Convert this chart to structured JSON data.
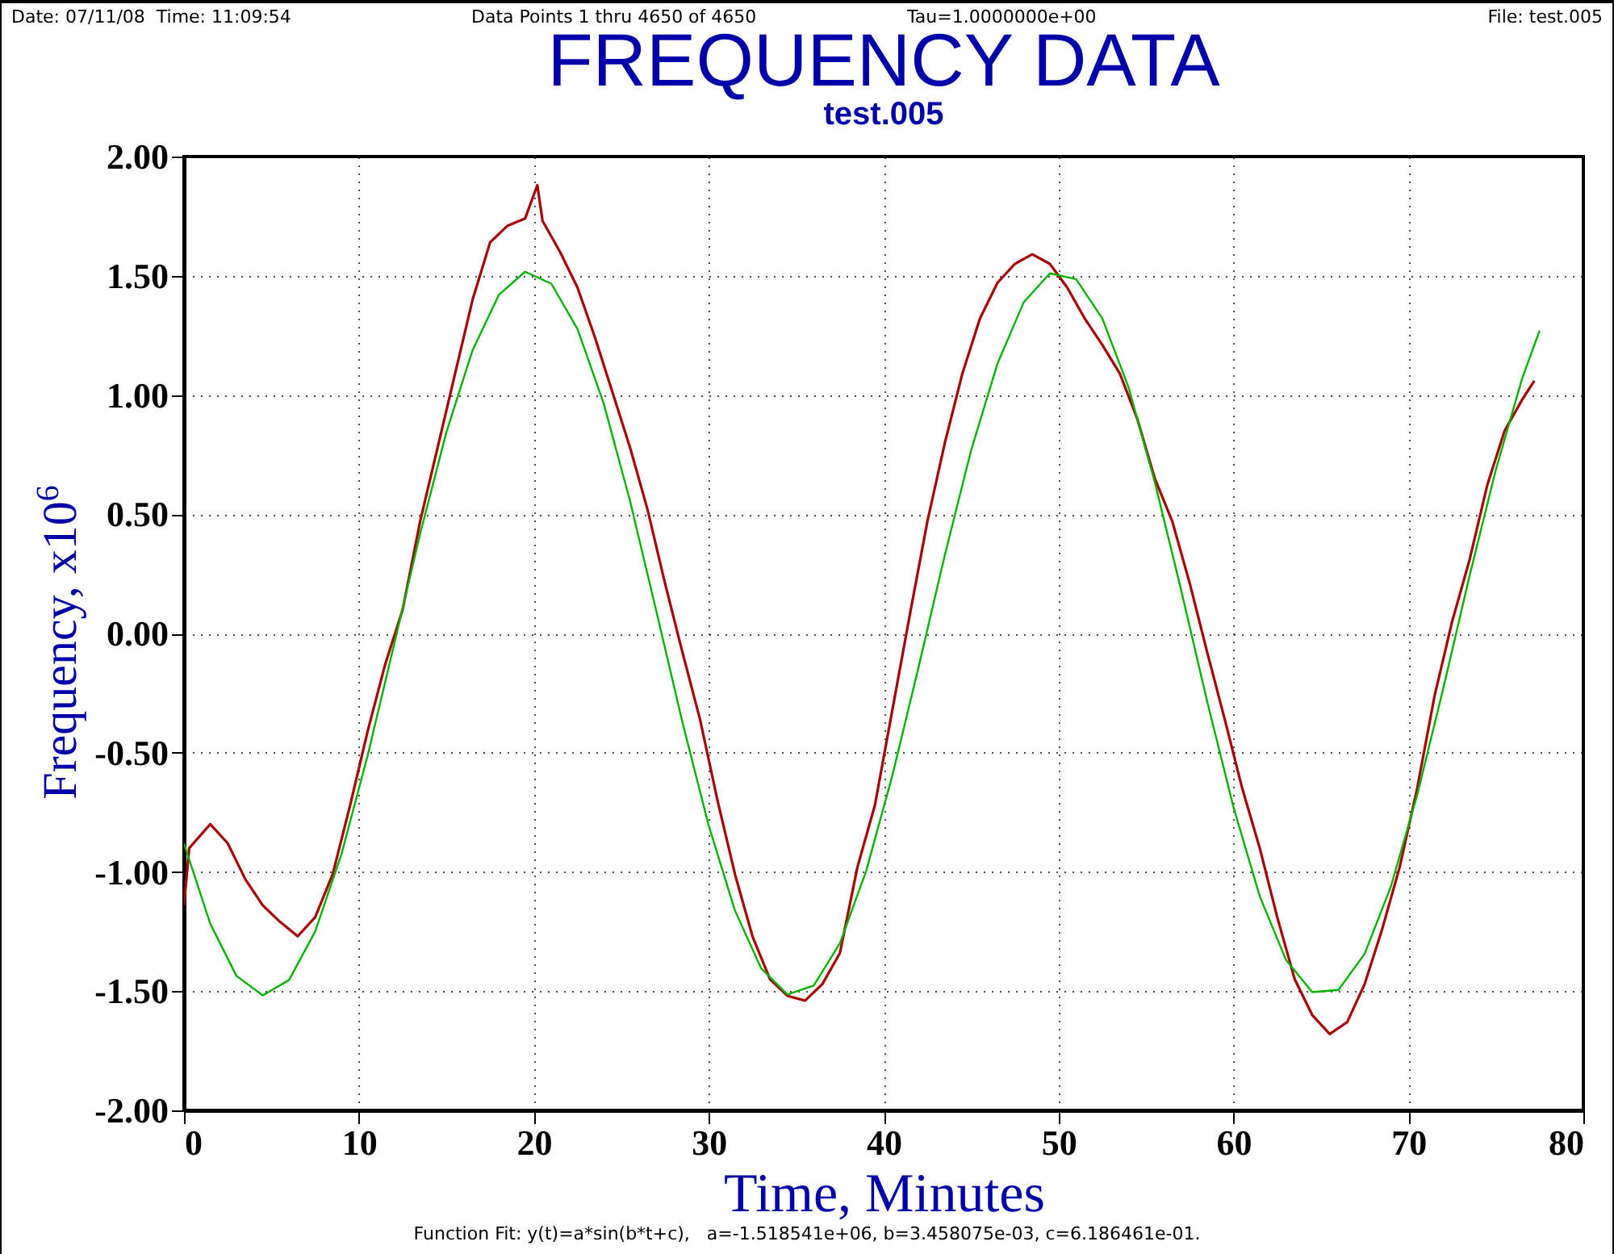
{
  "chart_data": {
    "type": "line",
    "title": "FREQUENCY DATA",
    "subtitle": "test.005",
    "xlabel": "Time, Minutes",
    "ylabel": "Frequency, x10$^{6}$",
    "annotations": [
      "Date: 07/11/08  Time: 11:09:54",
      "Data Points 1 thru 4650 of 4650",
      "Tau=1.0000000e+00",
      "File: test.005",
      "Function Fit: y(t)=a*sin(b*t+c),   a=-1.518541e+06, b=3.458075e-03, c=6.186461e-01."
    ],
    "xlim": [
      0,
      80
    ],
    "xticks": [
      0,
      10,
      20,
      30,
      40,
      50,
      60,
      70,
      80
    ],
    "ylim": [
      -2,
      2
    ],
    "yticks": [
      {
        "value": -2,
        "label": "-2.00"
      },
      {
        "value": -1.5,
        "label": "-1.50"
      },
      {
        "value": -1,
        "label": "-1.00"
      },
      {
        "value": -0.5,
        "label": "-0.50"
      },
      {
        "value": 0,
        "label": "0.00"
      },
      {
        "value": 0.5,
        "label": "0.50"
      },
      {
        "value": 1,
        "label": "1.00"
      },
      {
        "value": 1.5,
        "label": "1.50"
      },
      {
        "value": 2,
        "label": "2.00"
      }
    ],
    "grid": true,
    "marker": "none",
    "line_style": "solid",
    "series": [
      {
        "color": "#a80000",
        "x": [
          0,
          0.3,
          1.5,
          2.5,
          3.5,
          4.5,
          5.5,
          6.5,
          7.5,
          8.5,
          9.5,
          10.5,
          11.5,
          12.5,
          13.5,
          14.5,
          15.5,
          16.5,
          17.5,
          18.5,
          19.5,
          20.2,
          20.5,
          21.5,
          22.5,
          23.5,
          24.5,
          25.5,
          26.5,
          27.5,
          28.5,
          29.5,
          30.5,
          31.5,
          32.5,
          33.5,
          34.5,
          35.5,
          36.5,
          37.5,
          38.5,
          39.5,
          40,
          41.5,
          42.5,
          43.5,
          44.5,
          45.5,
          46.5,
          47.5,
          48.5,
          49.5,
          50.5,
          51.5,
          52.5,
          53.5,
          54.5,
          55.5,
          56.5,
          57.5,
          58.5,
          59.5,
          60.5,
          61.5,
          62.5,
          63.5,
          64.5,
          65.5,
          66.5,
          67.5,
          68.5,
          69.5,
          70.5,
          71.5,
          72.5,
          73.5,
          74.5,
          75.5,
          76.5,
          77.2
        ],
        "values": [
          -1.14,
          -0.9,
          -0.8,
          -0.88,
          -1.03,
          -1.14,
          -1.21,
          -1.27,
          -1.19,
          -1.01,
          -0.72,
          -0.41,
          -0.13,
          0.1,
          0.47,
          0.78,
          1.09,
          1.4,
          1.64,
          1.71,
          1.74,
          1.88,
          1.73,
          1.6,
          1.45,
          1.24,
          1.01,
          0.78,
          0.52,
          0.21,
          -0.08,
          -0.36,
          -0.7,
          -1.01,
          -1.27,
          -1.45,
          -1.52,
          -1.54,
          -1.47,
          -1.34,
          -0.98,
          -0.72,
          -0.52,
          0.08,
          0.47,
          0.8,
          1.09,
          1.32,
          1.47,
          1.55,
          1.59,
          1.55,
          1.45,
          1.32,
          1.21,
          1.09,
          0.9,
          0.65,
          0.47,
          0.21,
          -0.08,
          -0.36,
          -0.65,
          -0.9,
          -1.19,
          -1.45,
          -1.6,
          -1.68,
          -1.63,
          -1.47,
          -1.24,
          -0.98,
          -0.65,
          -0.26,
          0.05,
          0.31,
          0.62,
          0.85,
          0.98,
          1.06
        ]
      },
      {
        "color": "#00b400",
        "x": [
          0,
          1.5,
          3,
          4.5,
          6,
          7.5,
          9,
          10.5,
          12,
          13.5,
          15,
          16.5,
          18,
          19.5,
          21,
          22.5,
          24,
          25.5,
          27,
          28.5,
          30,
          31.5,
          33,
          34.5,
          36,
          37.5,
          39,
          40.5,
          42,
          43.5,
          45,
          46.5,
          48,
          49.5,
          51,
          52.5,
          54,
          55.5,
          57,
          58.5,
          60,
          61.5,
          63,
          64.5,
          66,
          67.5,
          69,
          70.5,
          72,
          73.5,
          75,
          76.5,
          77.5
        ],
        "values": [
          -0.881,
          -1.217,
          -1.436,
          -1.518,
          -1.454,
          -1.25,
          -0.926,
          -0.512,
          -0.05,
          0.418,
          0.844,
          1.188,
          1.42,
          1.517,
          1.467,
          1.276,
          0.963,
          0.556,
          0.095,
          -0.374,
          -0.806,
          -1.162,
          -1.405,
          -1.514,
          -1.477,
          -1.299,
          -0.996,
          -0.595,
          -0.14,
          0.33,
          0.768,
          1.13,
          1.388,
          1.51,
          1.486,
          1.321,
          1.032,
          0.635,
          0.184,
          -0.287,
          -0.729,
          -1.102,
          -1.369,
          -1.504,
          -1.495,
          -1.343,
          -1.061,
          -0.678,
          -0.228,
          0.243,
          0.687,
          1.069,
          1.27
        ]
      }
    ]
  }
}
